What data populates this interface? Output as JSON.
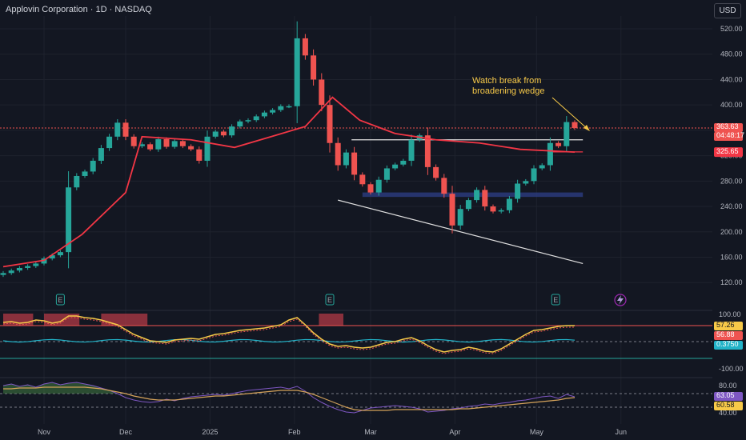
{
  "header": {
    "title": "Applovin Corporation · 1D · NASDAQ",
    "currency_button": "USD"
  },
  "annotation": {
    "lines": [
      "Watch break from",
      "broadening wedge"
    ]
  },
  "price_badges": {
    "last_price": "363.63",
    "countdown": "04:48:17",
    "ma_value": "325.65"
  },
  "price_axis_ticks": [
    "520.00",
    "480.00",
    "440.00",
    "400.00",
    "360.00",
    "320.00",
    "280.00",
    "240.00",
    "200.00",
    "160.00",
    "120.00"
  ],
  "time_axis_labels": [
    "Nov",
    "Dec",
    "2025",
    "Feb",
    "Mar",
    "Apr",
    "May",
    "Jun"
  ],
  "earnings_marker": "E",
  "indicator1": {
    "axis_ticks": [
      "100.00",
      "-100.00"
    ],
    "values": [
      "57.26",
      "56.88",
      "0.3750"
    ]
  },
  "indicator2": {
    "axis_ticks": [
      "80.00",
      "40.00"
    ],
    "values": [
      "63.05",
      "60.58"
    ]
  },
  "colors": {
    "up": "#26a69a",
    "down": "#ef5350",
    "ma": "#f23645",
    "background": "#131722",
    "annotation": "#f7c948",
    "band": "#2a3a7a"
  },
  "chart_data": {
    "type": "candlestick",
    "symbol": "Applovin Corporation",
    "interval": "1D",
    "exchange": "NASDAQ",
    "currency": "USD",
    "ylim": [
      110,
      540
    ],
    "dates": [
      "2024-10-17",
      "2024-10-20",
      "2024-10-23",
      "2024-10-26",
      "2024-10-29",
      "2024-11-01",
      "2024-11-04",
      "2024-11-07",
      "2024-11-10",
      "2024-11-13",
      "2024-11-16",
      "2024-11-19",
      "2024-11-22",
      "2024-11-25",
      "2024-11-28",
      "2024-12-01",
      "2024-12-04",
      "2024-12-07",
      "2024-12-10",
      "2024-12-13",
      "2024-12-16",
      "2024-12-19",
      "2024-12-22",
      "2024-12-25",
      "2024-12-28",
      "2024-12-31",
      "2025-01-03",
      "2025-01-06",
      "2025-01-09",
      "2025-01-12",
      "2025-01-15",
      "2025-01-18",
      "2025-01-21",
      "2025-01-24",
      "2025-01-27",
      "2025-01-30",
      "2025-02-02",
      "2025-02-05",
      "2025-02-08",
      "2025-02-11",
      "2025-02-14",
      "2025-02-17",
      "2025-02-20",
      "2025-02-23",
      "2025-02-26",
      "2025-03-01",
      "2025-03-04",
      "2025-03-07",
      "2025-03-10",
      "2025-03-13",
      "2025-03-16",
      "2025-03-19",
      "2025-03-22",
      "2025-03-25",
      "2025-03-28",
      "2025-03-31",
      "2025-04-03",
      "2025-04-06",
      "2025-04-09",
      "2025-04-12",
      "2025-04-15",
      "2025-04-18",
      "2025-04-21",
      "2025-04-24",
      "2025-04-27",
      "2025-04-30",
      "2025-05-03",
      "2025-05-06",
      "2025-05-09",
      "2025-05-12",
      "2025-05-15"
    ],
    "close": [
      135,
      139,
      143,
      146,
      150,
      158,
      163,
      168,
      270,
      288,
      295,
      312,
      332,
      350,
      372,
      350,
      335,
      338,
      330,
      346,
      334,
      343,
      335,
      330,
      312,
      350,
      358,
      352,
      366,
      374,
      376,
      382,
      388,
      392,
      398,
      398,
      505,
      478,
      440,
      400,
      340,
      305,
      325,
      290,
      275,
      262,
      282,
      300,
      306,
      312,
      345,
      352,
      302,
      285,
      260,
      210,
      236,
      250,
      266,
      240,
      232,
      234,
      252,
      276,
      280,
      300,
      305,
      340,
      335,
      373,
      363.63
    ],
    "ma": [
      {
        "x": "2024-10-17",
        "y": 145
      },
      {
        "x": "2024-11-01",
        "y": 155
      },
      {
        "x": "2024-11-15",
        "y": 196
      },
      {
        "x": "2024-12-01",
        "y": 262
      },
      {
        "x": "2024-12-07",
        "y": 350
      },
      {
        "x": "2024-12-25",
        "y": 345
      },
      {
        "x": "2025-01-10",
        "y": 333
      },
      {
        "x": "2025-01-25",
        "y": 352
      },
      {
        "x": "2025-02-05",
        "y": 366
      },
      {
        "x": "2025-02-15",
        "y": 412
      },
      {
        "x": "2025-02-25",
        "y": 376
      },
      {
        "x": "2025-03-10",
        "y": 355
      },
      {
        "x": "2025-03-25",
        "y": 345
      },
      {
        "x": "2025-04-10",
        "y": 340
      },
      {
        "x": "2025-04-25",
        "y": 330
      },
      {
        "x": "2025-05-15",
        "y": 325.65
      }
    ],
    "horizontal_levels": [
      {
        "price": 345,
        "from": "2025-02-22",
        "to": "2025-05-18",
        "color": "white"
      },
      {
        "price": 326,
        "from": "2025-05-07",
        "to": "2025-05-18",
        "color": "red"
      }
    ],
    "support_band": {
      "low": 255,
      "high": 262,
      "from": "2025-02-26",
      "to": "2025-05-18"
    },
    "trendline": {
      "from": {
        "x": "2025-02-17",
        "y": 250
      },
      "to": {
        "x": "2025-05-18",
        "y": 150
      }
    },
    "annotation": "Watch break from broadening wedge",
    "earnings_dates": [
      "2024-11-07",
      "2025-02-14",
      "2025-05-08"
    ]
  }
}
